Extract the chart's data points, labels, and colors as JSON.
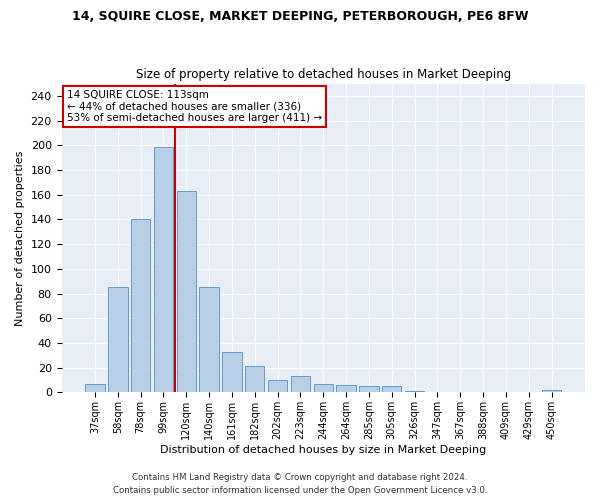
{
  "title": "14, SQUIRE CLOSE, MARKET DEEPING, PETERBOROUGH, PE6 8FW",
  "subtitle": "Size of property relative to detached houses in Market Deeping",
  "xlabel": "Distribution of detached houses by size in Market Deeping",
  "ylabel": "Number of detached properties",
  "categories": [
    "37sqm",
    "58sqm",
    "78sqm",
    "99sqm",
    "120sqm",
    "140sqm",
    "161sqm",
    "182sqm",
    "202sqm",
    "223sqm",
    "244sqm",
    "264sqm",
    "285sqm",
    "305sqm",
    "326sqm",
    "347sqm",
    "367sqm",
    "388sqm",
    "409sqm",
    "429sqm",
    "450sqm"
  ],
  "values": [
    7,
    85,
    140,
    199,
    163,
    85,
    33,
    21,
    10,
    13,
    7,
    6,
    5,
    5,
    1,
    0,
    0,
    0,
    0,
    0,
    2
  ],
  "bar_color": "#b8cfe8",
  "bar_edge_color": "#6699cc",
  "vline_x_index": 4,
  "vline_color": "#cc0000",
  "annotation_line0": "14 SQUIRE CLOSE: 113sqm",
  "annotation_line1": "← 44% of detached houses are smaller (336)",
  "annotation_line2": "53% of semi-detached houses are larger (411) →",
  "annotation_box_color": "white",
  "annotation_box_edge": "#cc0000",
  "ylim": [
    0,
    250
  ],
  "yticks": [
    0,
    20,
    40,
    60,
    80,
    100,
    120,
    140,
    160,
    180,
    200,
    220,
    240
  ],
  "footer1": "Contains HM Land Registry data © Crown copyright and database right 2024.",
  "footer2": "Contains public sector information licensed under the Open Government Licence v3.0.",
  "bg_color": "#ffffff",
  "plot_bg_color": "#e8eef5"
}
